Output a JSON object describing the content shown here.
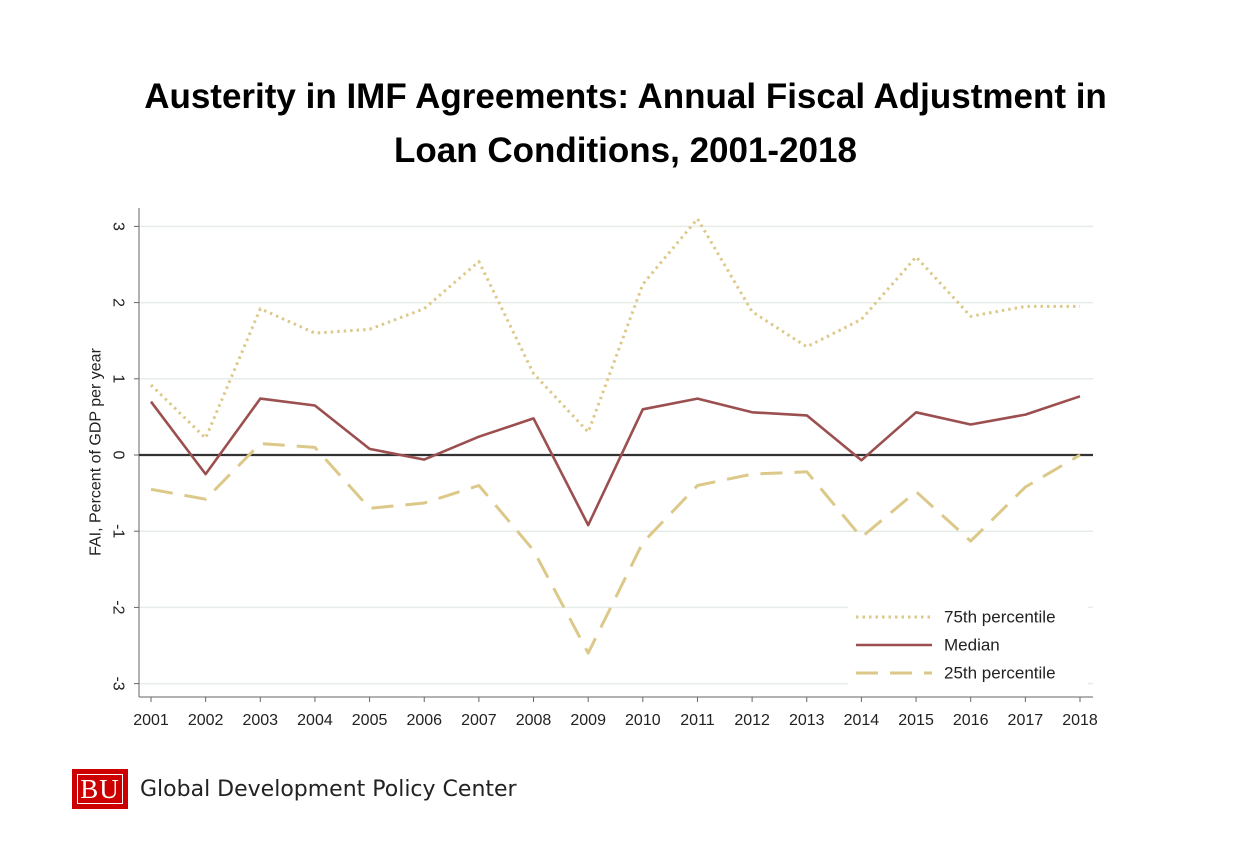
{
  "title": {
    "line1": "Austerity in IMF Agreements: Annual Fiscal Adjustment in",
    "line2": "Loan Conditions, 2001-2018"
  },
  "chart_data": {
    "type": "line",
    "ylabel": "FAI, Percent of GDP per year",
    "xlabel": "",
    "ylim": [
      -3.15,
      3.3
    ],
    "yticks": [
      -3,
      -2,
      -1,
      0,
      1,
      2,
      3
    ],
    "grid": true,
    "legend_position": "bottom-right",
    "x": [
      "2001",
      "2002",
      "2003",
      "2004",
      "2005",
      "2006",
      "2007",
      "2008",
      "2009",
      "2010",
      "2011",
      "2012",
      "2013",
      "2014",
      "2015",
      "2016",
      "2017",
      "2018"
    ],
    "series": [
      {
        "name": "75th percentile",
        "color": "#dcc98a",
        "style": "dotted",
        "values": [
          0.92,
          0.22,
          1.92,
          1.6,
          1.65,
          1.92,
          2.54,
          1.07,
          0.3,
          2.24,
          3.1,
          1.88,
          1.42,
          1.78,
          2.6,
          1.82,
          1.95,
          1.95
        ]
      },
      {
        "name": "Median",
        "color": "#9b4f4f",
        "style": "solid",
        "values": [
          0.7,
          -0.25,
          0.74,
          0.65,
          0.08,
          -0.06,
          0.24,
          0.48,
          -0.92,
          0.6,
          0.74,
          0.56,
          0.52,
          -0.07,
          0.56,
          0.4,
          0.53,
          0.77
        ]
      },
      {
        "name": "25th percentile",
        "color": "#dcc98a",
        "style": "dashed",
        "values": [
          -0.45,
          -0.58,
          0.15,
          0.1,
          -0.7,
          -0.63,
          -0.4,
          -1.25,
          -2.6,
          -1.15,
          -0.4,
          -0.25,
          -0.22,
          -1.08,
          -0.48,
          -1.13,
          -0.42,
          0.0
        ]
      }
    ],
    "zero_line_color": "#333333",
    "grid_color": "#e6ece8"
  },
  "logo": {
    "mark": "BU",
    "name": "Global Development Policy Center",
    "color": "#cc0000"
  }
}
